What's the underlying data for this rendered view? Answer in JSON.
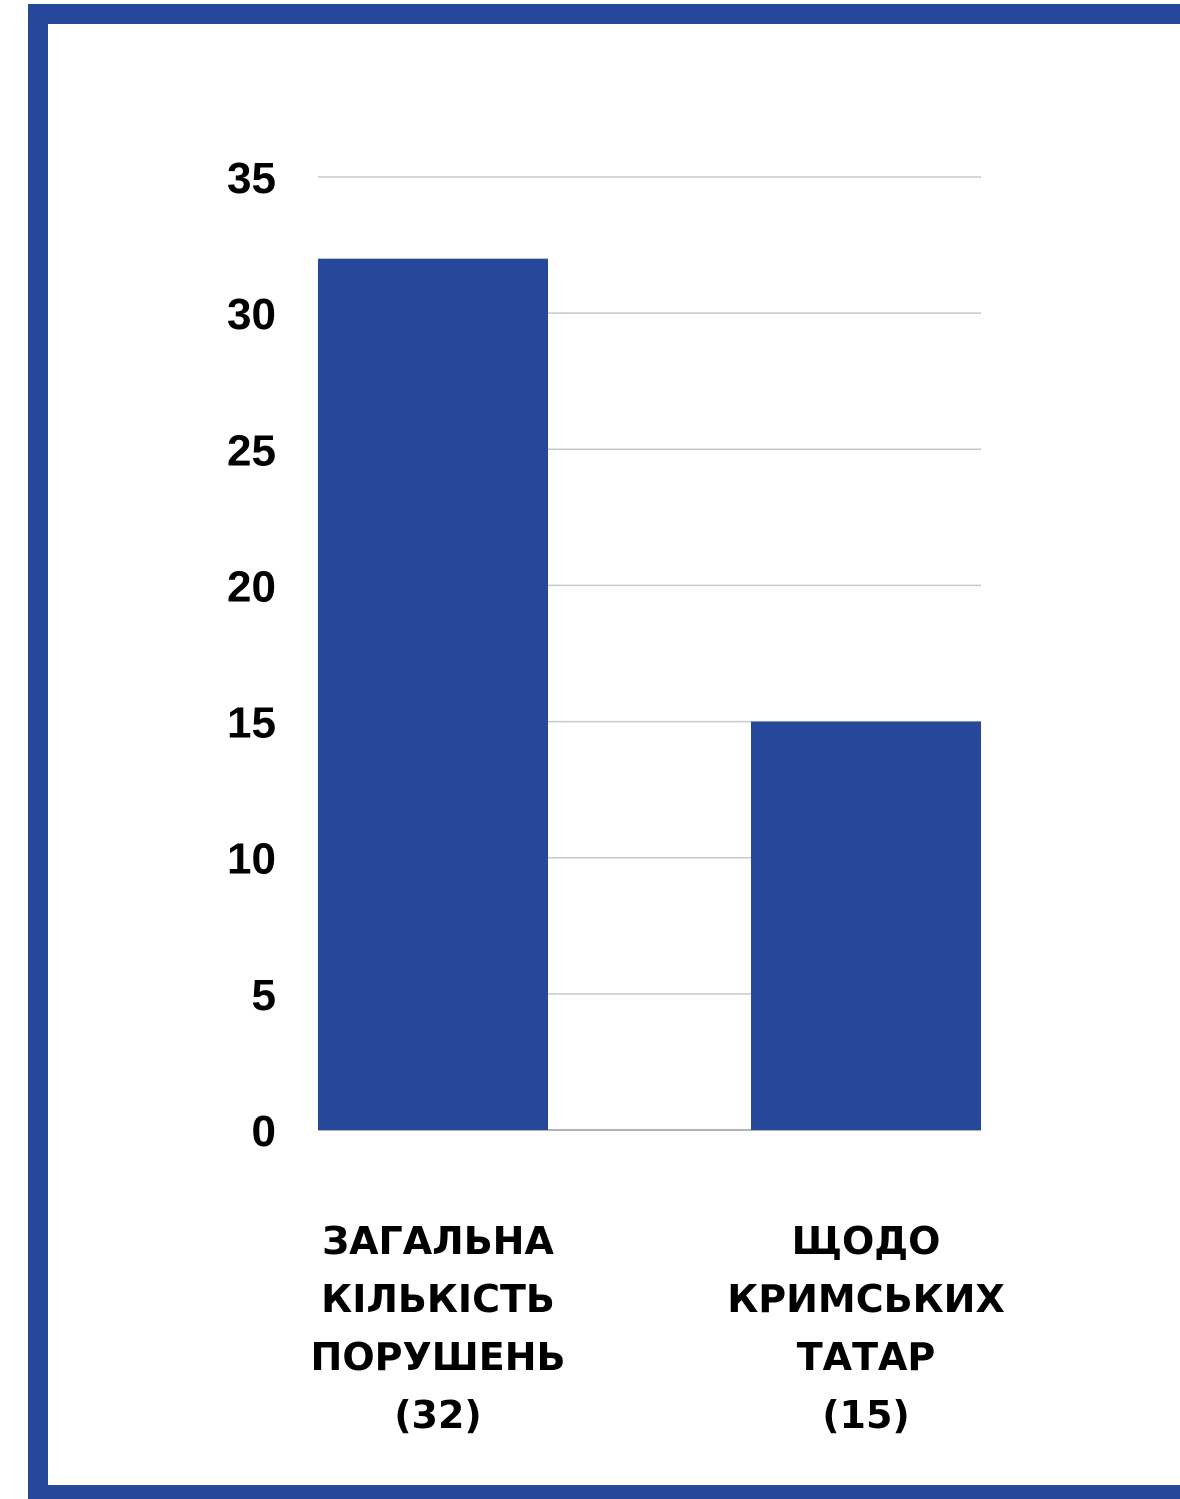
{
  "chart_data": {
    "type": "bar",
    "categories": [
      [
        "ЗАГАЛЬНА",
        "КІЛЬКІСТЬ",
        "ПОРУШЕНЬ",
        "(32)"
      ],
      [
        "ЩОДО",
        "КРИМСЬКИХ",
        "ТАТАР",
        "(15)"
      ]
    ],
    "values": [
      32,
      15
    ],
    "ylim": [
      0,
      35
    ],
    "yticks": [
      "0",
      "5",
      "10",
      "15",
      "20",
      "25",
      "30",
      "35"
    ],
    "ytick_values": [
      0,
      5,
      10,
      15,
      20,
      25,
      30,
      35
    ],
    "grid": true,
    "legend": "none"
  },
  "colors": {
    "bar": "#27479A",
    "frame": "#27479A",
    "grid": "#C8C8C8"
  }
}
